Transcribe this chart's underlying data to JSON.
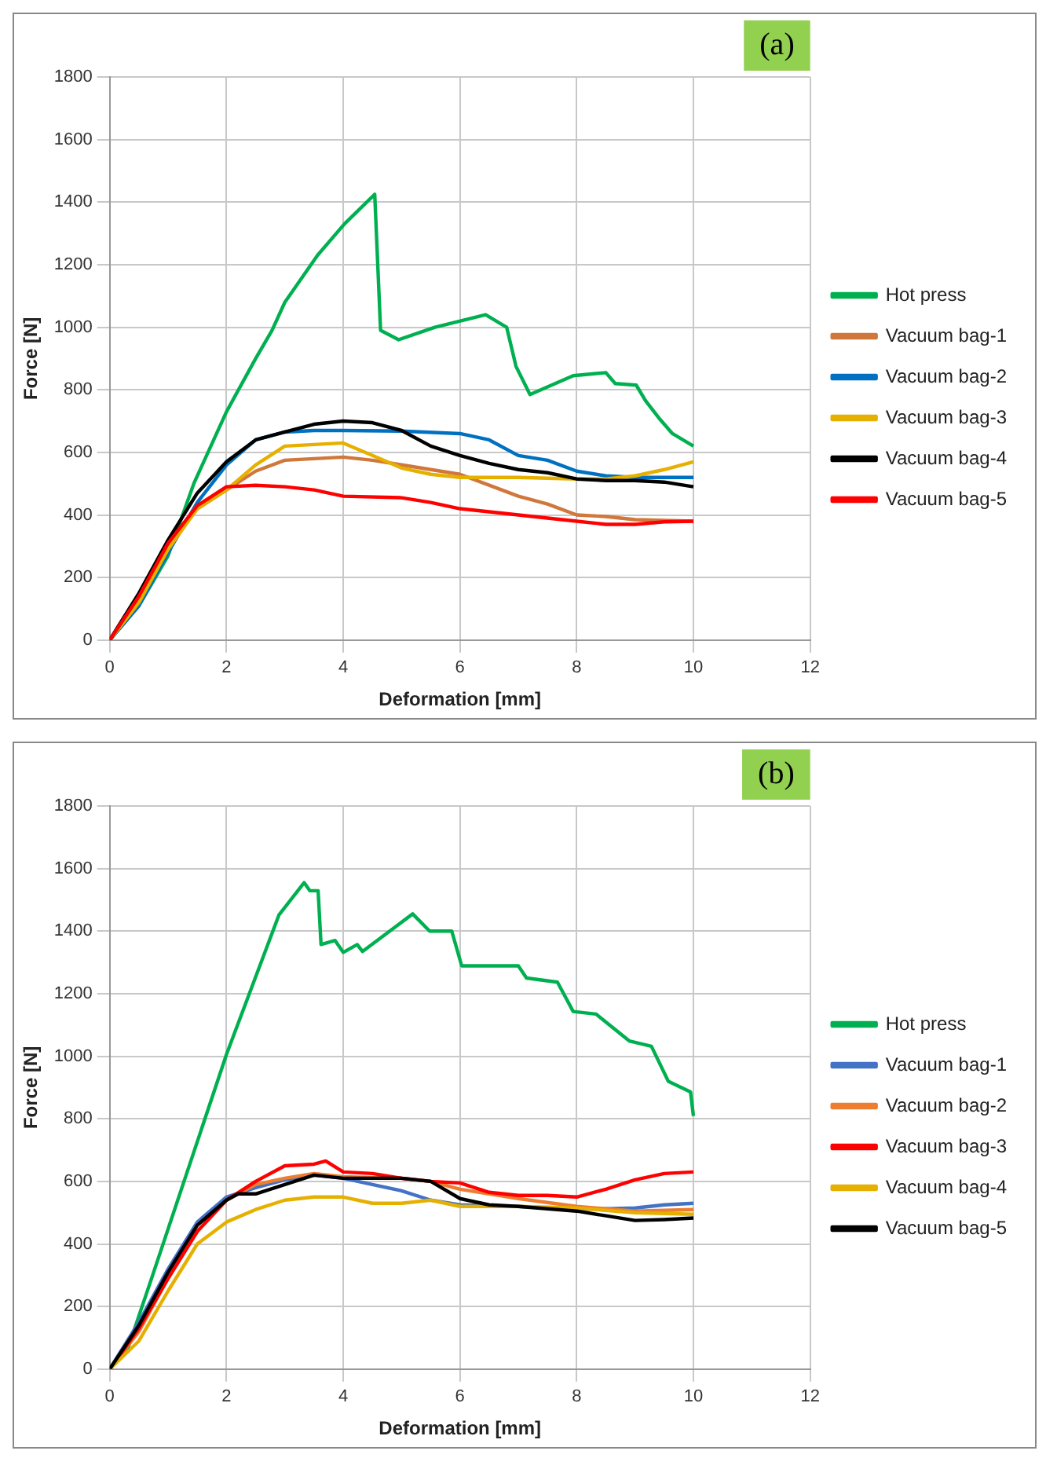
{
  "chart_data": [
    {
      "type": "line",
      "title": "(a)",
      "xlabel": "Deformation [mm]",
      "ylabel": "Force [N]",
      "xlim": [
        0,
        12
      ],
      "xticks": [
        0,
        2,
        4,
        6,
        8,
        10,
        12
      ],
      "ylim": [
        0,
        1800
      ],
      "yticks": [
        0,
        200,
        400,
        600,
        800,
        1000,
        1200,
        1400,
        1600,
        1800
      ],
      "grid": true,
      "legend": "right",
      "marker": "none",
      "line_style": "solid",
      "series": [
        {
          "name": "Hot press",
          "color": "#00b050",
          "x": [
            0,
            0.5,
            0.72,
            1,
            1.44,
            2,
            2.5,
            2.78,
            3,
            3.56,
            4.02,
            4.54,
            4.64,
            4.95,
            5.57,
            6.44,
            6.8,
            6.96,
            7.2,
            7.94,
            8.5,
            8.66,
            9.02,
            9.18,
            9.43,
            9.64,
            10
          ],
          "values": [
            0,
            110,
            180,
            270,
            500,
            730,
            900,
            990,
            1080,
            1230,
            1330,
            1425,
            990,
            960,
            1000,
            1040,
            1000,
            875,
            785,
            845,
            855,
            820,
            815,
            765,
            705,
            660,
            620
          ]
        },
        {
          "name": "Vacuum bag-1",
          "color": "#d0783c",
          "x": [
            0,
            0.5,
            1,
            1.5,
            2,
            2.5,
            3,
            3.5,
            4,
            4.5,
            5,
            5.5,
            6,
            6.5,
            7,
            7.5,
            8,
            8.5,
            9,
            10
          ],
          "values": [
            0,
            130,
            300,
            420,
            480,
            540,
            575,
            580,
            585,
            575,
            560,
            545,
            530,
            495,
            460,
            435,
            400,
            395,
            385,
            380
          ]
        },
        {
          "name": "Vacuum bag-2",
          "color": "#0070c0",
          "x": [
            0,
            0.5,
            1,
            1.5,
            2,
            2.5,
            3,
            3.5,
            4,
            5,
            6,
            6.5,
            7,
            7.5,
            8,
            8.5,
            9,
            10
          ],
          "values": [
            0,
            110,
            280,
            440,
            560,
            640,
            665,
            670,
            670,
            668,
            660,
            640,
            590,
            575,
            540,
            525,
            520,
            520
          ]
        },
        {
          "name": "Vacuum bag-3",
          "color": "#e6b000",
          "x": [
            0,
            0.5,
            1,
            1.5,
            2,
            2.5,
            3,
            3.5,
            4,
            4.5,
            5,
            5.5,
            6,
            7,
            8,
            8.5,
            9,
            9.5,
            10
          ],
          "values": [
            0,
            120,
            290,
            420,
            480,
            560,
            620,
            625,
            630,
            590,
            550,
            530,
            520,
            520,
            515,
            515,
            525,
            545,
            570
          ]
        },
        {
          "name": "Vacuum bag-4",
          "color": "#000000",
          "x": [
            0,
            0.5,
            1,
            1.5,
            1.8,
            2,
            2.5,
            3,
            3.5,
            4,
            4.5,
            5,
            5.5,
            6,
            6.5,
            7,
            7.5,
            8,
            8.5,
            9,
            9.5,
            10
          ],
          "values": [
            0,
            150,
            320,
            470,
            530,
            570,
            640,
            665,
            690,
            700,
            695,
            670,
            620,
            590,
            565,
            545,
            535,
            515,
            510,
            510,
            505,
            490
          ]
        },
        {
          "name": "Vacuum bag-5",
          "color": "#ff0000",
          "x": [
            0,
            0.5,
            1,
            1.5,
            2,
            2.5,
            3,
            3.5,
            4,
            5,
            5.5,
            6,
            7,
            8,
            8.5,
            9,
            9.5,
            10
          ],
          "values": [
            0,
            140,
            310,
            430,
            490,
            495,
            490,
            480,
            460,
            455,
            440,
            420,
            400,
            380,
            370,
            370,
            378,
            380
          ]
        }
      ]
    },
    {
      "type": "line",
      "title": "(b)",
      "xlabel": "Deformation [mm]",
      "ylabel": "Force [N]",
      "xlim": [
        0,
        12
      ],
      "xticks": [
        0,
        2,
        4,
        6,
        8,
        10,
        12
      ],
      "ylim": [
        0,
        1800
      ],
      "yticks": [
        0,
        200,
        400,
        600,
        800,
        1000,
        1200,
        1400,
        1600,
        1800
      ],
      "grid": true,
      "legend": "right",
      "marker": "none",
      "line_style": "solid",
      "series": [
        {
          "name": "Hot press",
          "color": "#00b050",
          "x": [
            0,
            0.3,
            0.71,
            2,
            2.9,
            3.33,
            3.43,
            3.57,
            3.62,
            3.86,
            4,
            4.24,
            4.33,
            5.19,
            5.48,
            5.86,
            6.03,
            7,
            7.14,
            7.67,
            7.94,
            8.33,
            8.9,
            9.28,
            9.57,
            9.95,
            10
          ],
          "values": [
            0,
            60,
            286,
            1006,
            1452,
            1555,
            1529,
            1529,
            1357,
            1370,
            1332,
            1357,
            1335,
            1455,
            1400,
            1400,
            1289,
            1289,
            1250,
            1237,
            1143,
            1135,
            1049,
            1032,
            920,
            886,
            809
          ]
        },
        {
          "name": "Vacuum bag-1",
          "color": "#4472c4",
          "x": [
            0,
            0.5,
            1,
            1.5,
            2,
            2.5,
            3,
            3.5,
            4,
            4.5,
            5,
            5.5,
            6,
            7,
            8,
            9,
            9.5,
            10
          ],
          "values": [
            0,
            150,
            320,
            470,
            550,
            580,
            605,
            620,
            610,
            590,
            570,
            540,
            525,
            520,
            510,
            515,
            525,
            530
          ]
        },
        {
          "name": "Vacuum bag-2",
          "color": "#ed7d31",
          "x": [
            0,
            0.5,
            1,
            1.5,
            2,
            2.5,
            3,
            3.5,
            4,
            5,
            5.5,
            6,
            7,
            8,
            9,
            10
          ],
          "values": [
            0,
            120,
            290,
            440,
            540,
            590,
            610,
            625,
            615,
            610,
            600,
            575,
            545,
            520,
            505,
            510
          ]
        },
        {
          "name": "Vacuum bag-3",
          "color": "#ff0000",
          "x": [
            0,
            0.5,
            1,
            1.5,
            2,
            2.5,
            3,
            3.5,
            3.7,
            4,
            4.5,
            5,
            5.5,
            6,
            6.5,
            7,
            7.5,
            8,
            8.5,
            9,
            9.5,
            10
          ],
          "values": [
            0,
            130,
            290,
            440,
            540,
            600,
            650,
            655,
            665,
            630,
            625,
            610,
            600,
            595,
            565,
            555,
            555,
            550,
            575,
            605,
            625,
            630
          ]
        },
        {
          "name": "Vacuum bag-4",
          "color": "#e6b000",
          "x": [
            0,
            0.5,
            1,
            1.5,
            2,
            2.5,
            3,
            3.5,
            4,
            4.5,
            5,
            5.5,
            6,
            7,
            8,
            9,
            10
          ],
          "values": [
            0,
            90,
            250,
            400,
            470,
            510,
            540,
            550,
            550,
            530,
            530,
            540,
            520,
            520,
            515,
            500,
            495
          ]
        },
        {
          "name": "Vacuum bag-5",
          "color": "#000000",
          "x": [
            0,
            0.5,
            1,
            1.5,
            2,
            2.2,
            2.5,
            3,
            3.5,
            4,
            5,
            5.5,
            6,
            6.5,
            7,
            8,
            8.5,
            9,
            9.5,
            10
          ],
          "values": [
            0,
            140,
            310,
            460,
            540,
            560,
            560,
            590,
            620,
            610,
            610,
            600,
            545,
            525,
            520,
            505,
            490,
            475,
            478,
            483
          ]
        }
      ]
    }
  ]
}
